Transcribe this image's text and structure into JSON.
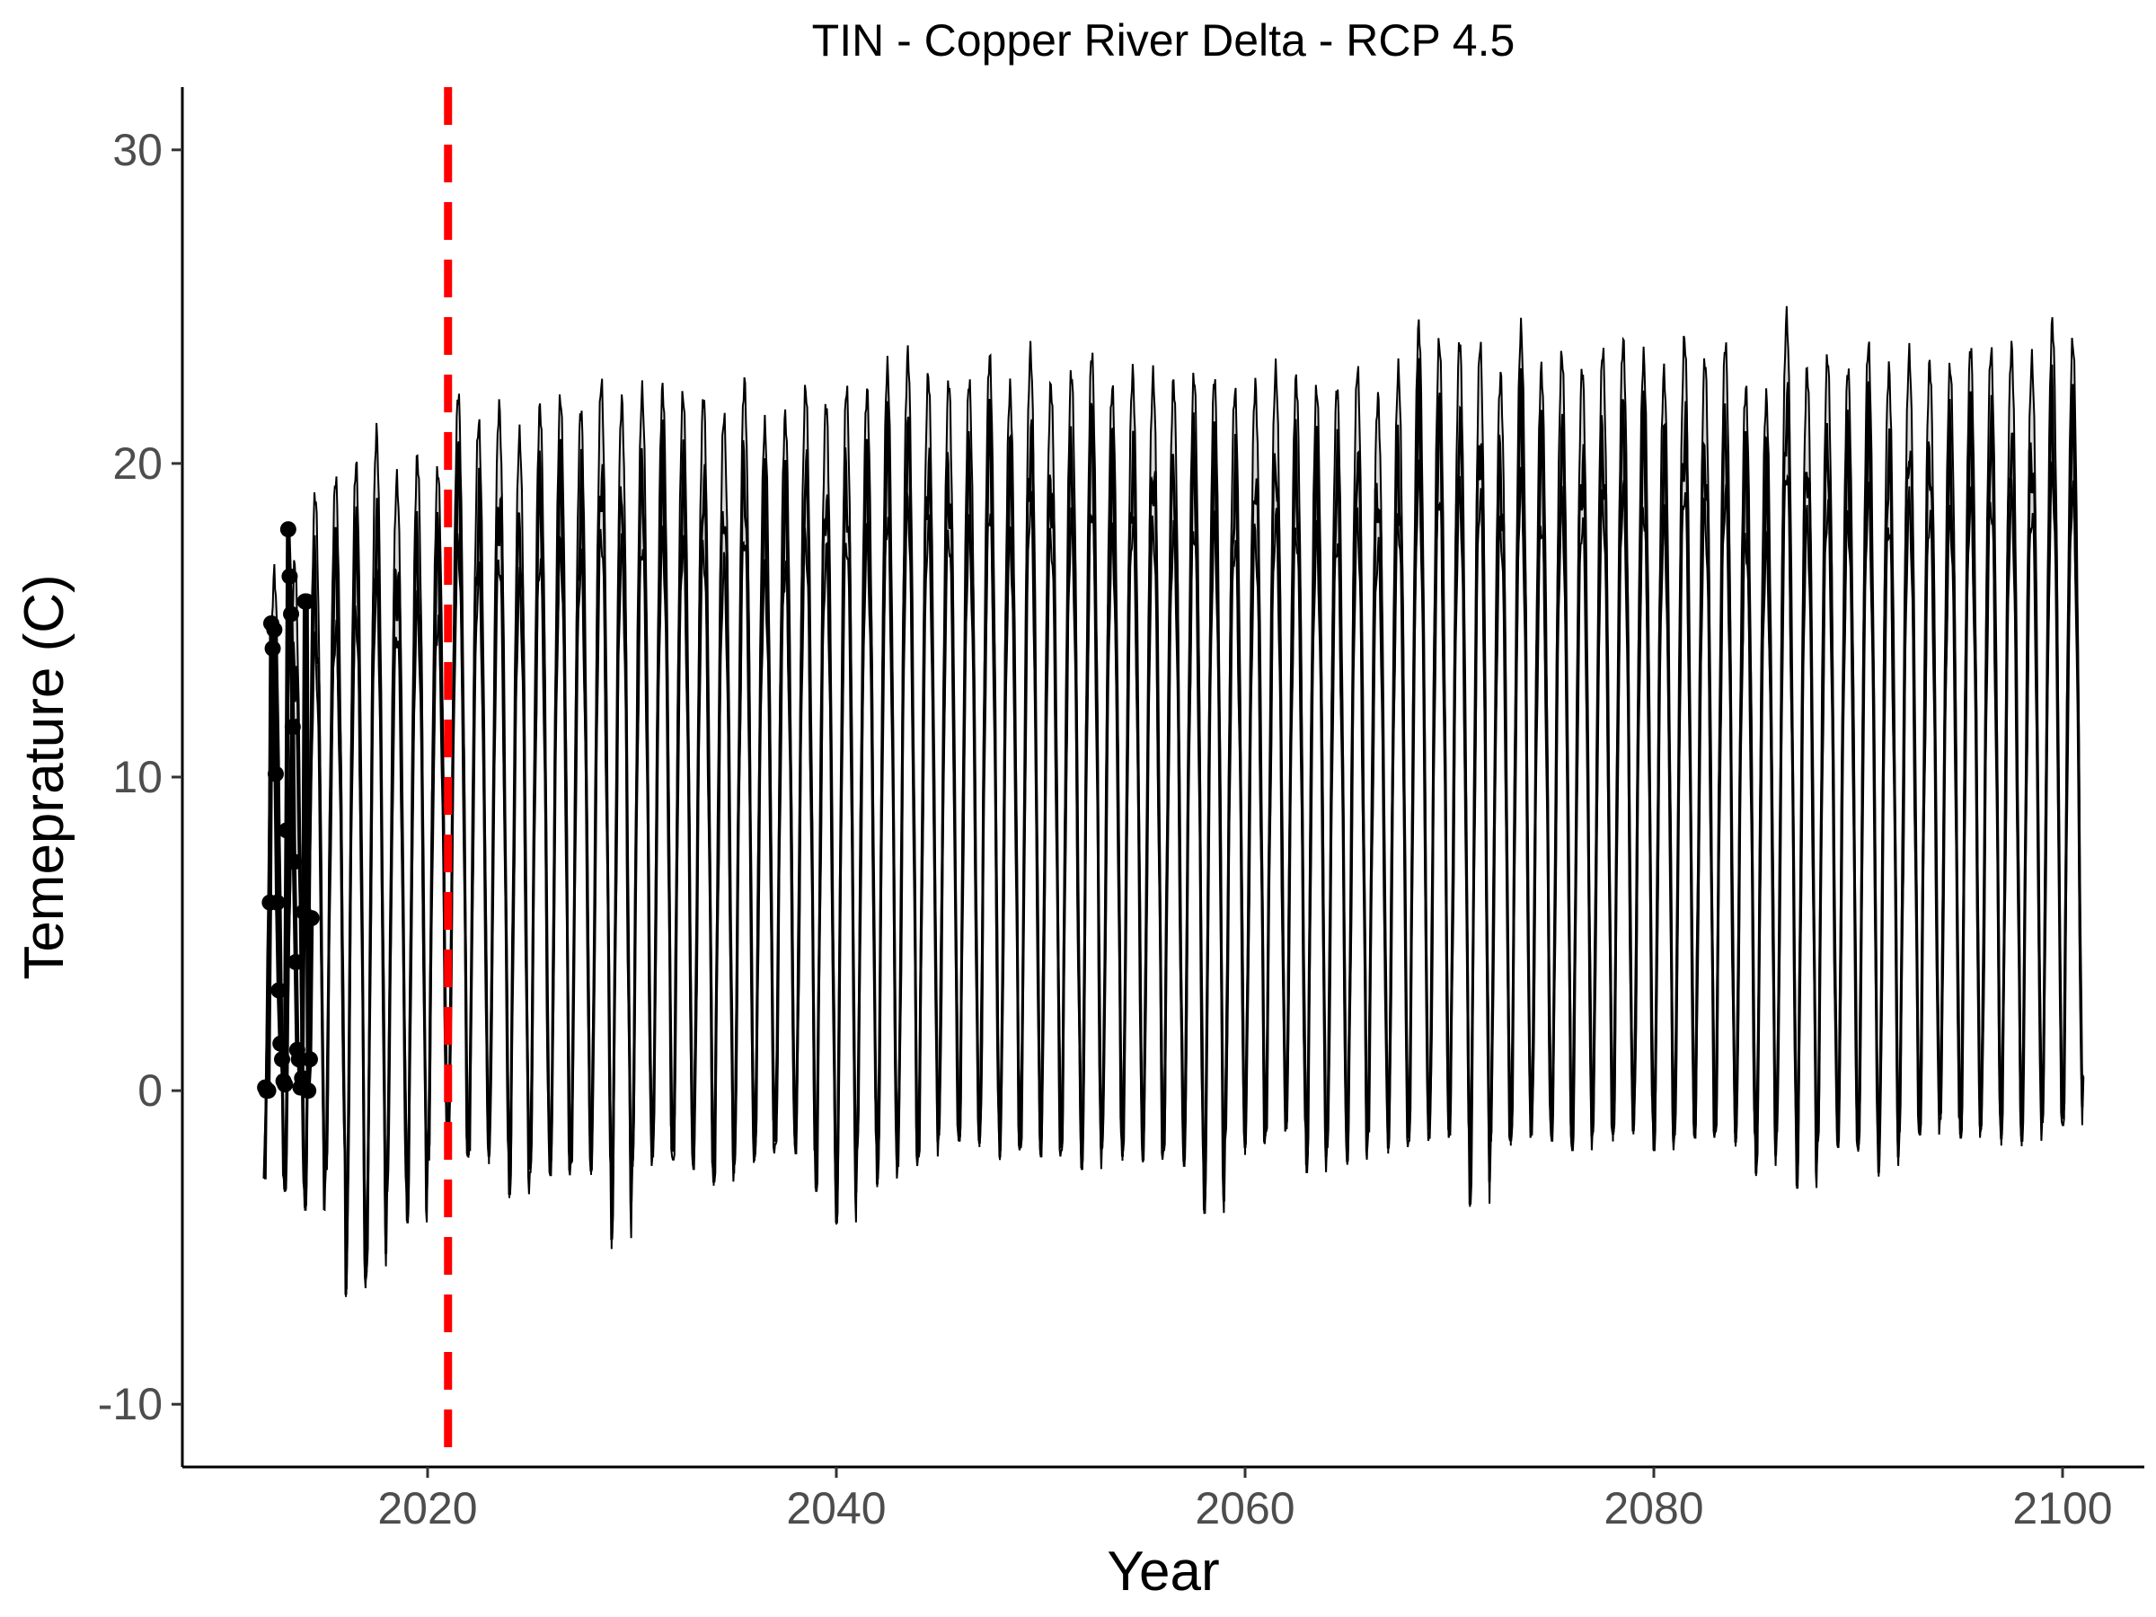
{
  "chart_data": {
    "type": "line",
    "title": "TIN - Copper River Delta - RCP 4.5",
    "xlabel": "Year",
    "ylabel": "Temeprature (C)",
    "xlim": [
      2008,
      2104
    ],
    "ylim": [
      -12,
      32
    ],
    "x_ticks": [
      2020,
      2040,
      2060,
      2080,
      2100
    ],
    "x_tick_labels": [
      "2020",
      "2040",
      "2060",
      "2080",
      "2100"
    ],
    "y_ticks": [
      -10,
      0,
      10,
      20,
      30
    ],
    "y_tick_labels": [
      "-10",
      "0",
      "10",
      "20",
      "30"
    ],
    "grid": false,
    "legend": "none",
    "start_year": 2012,
    "end_year": 2101,
    "vline": {
      "x": 2021,
      "color": "#ff0000",
      "style": "dashed"
    },
    "band_fill": "#d9d9d9",
    "line_color": "#000000",
    "summer_peak_upper": [
      16.5,
      16.8,
      19.0,
      19.5,
      20.0,
      21.0,
      19.5,
      20.2,
      19.8,
      22.2,
      21.3,
      21.8,
      20.9,
      21.8,
      22.1,
      21.7,
      22.6,
      22.0,
      22.3,
      22.4,
      22.2,
      22.1,
      21.5,
      22.6,
      21.2,
      21.5,
      22.4,
      21.9,
      22.4,
      22.3,
      23.1,
      23.5,
      22.8,
      22.6,
      22.6,
      23.4,
      22.4,
      23.6,
      22.5,
      22.9,
      23.5,
      22.4,
      22.9,
      22.8,
      22.6,
      22.8,
      22.7,
      22.3,
      22.5,
      23.0,
      22.7,
      22.4,
      22.4,
      23.0,
      22.1,
      23.0,
      24.4,
      23.9,
      23.9,
      23.8,
      22.8,
      24.3,
      23.0,
      23.5,
      23.0,
      23.6,
      23.9,
      23.4,
      22.9,
      24.0,
      23.3,
      23.8,
      22.4,
      22.1,
      24.7,
      23.0,
      23.4,
      23.0,
      23.8,
      23.0,
      23.5,
      23.2,
      23.1,
      23.7,
      23.6,
      23.7,
      23.3,
      24.5,
      23.9,
      23.2
    ],
    "winter_trough_lower": [
      -2.8,
      -3.2,
      -3.8,
      -2.5,
      -6.3,
      -5.6,
      -3.2,
      -4.2,
      -2.2,
      -2.1,
      -1.9,
      -2.0,
      -3.3,
      -2.6,
      -2.7,
      -2.3,
      -2.5,
      -4.7,
      -2.4,
      -2.1,
      -2.2,
      -2.5,
      -2.9,
      -2.3,
      -2.0,
      -1.7,
      -2.0,
      -3.2,
      -4.2,
      -1.8,
      -2.8,
      -2.4,
      -2.1,
      -1.4,
      -1.6,
      -1.5,
      -1.9,
      -1.8,
      -2.1,
      -1.9,
      -2.5,
      -1.6,
      -1.9,
      -2.2,
      -1.9,
      -2.4,
      -3.9,
      -1.5,
      -1.7,
      -1.3,
      -1.2,
      -2.6,
      -1.8,
      -2.2,
      -1.3,
      -1.8,
      -1.6,
      -1.5,
      -1.4,
      -3.6,
      -1.6,
      -1.5,
      -1.4,
      -1.6,
      -1.9,
      -1.3,
      -1.3,
      -1.1,
      -1.9,
      -1.4,
      -1.5,
      -1.3,
      -1.5,
      -2.4,
      -1.3,
      -3.1,
      -1.6,
      -1.8,
      -1.7,
      -2.4,
      -1.3,
      -1.4,
      -0.9,
      -1.5,
      -1.1,
      -1.4,
      -1.6,
      -1.0,
      -1.1,
      0.3
    ],
    "observed_points": {
      "x": [
        2012.05,
        2012.12,
        2012.2,
        2012.28,
        2012.35,
        2012.42,
        2012.5,
        2012.57,
        2012.64,
        2012.72,
        2012.8,
        2012.88,
        2012.95,
        2013.02,
        2013.1,
        2013.18,
        2013.25,
        2013.32,
        2013.4,
        2013.47,
        2013.55,
        2013.62,
        2013.7,
        2013.78,
        2013.86,
        2013.93,
        2014.0,
        2014.08,
        2014.16,
        2014.24,
        2014.32
      ],
      "y": [
        0.1,
        0.0,
        0.0,
        6.0,
        14.9,
        14.1,
        14.7,
        10.1,
        6.0,
        3.2,
        1.5,
        1.0,
        0.3,
        0.2,
        8.3,
        17.9,
        16.4,
        15.2,
        11.6,
        7.3,
        4.1,
        1.3,
        1.0,
        0.1,
        0.4,
        5.7,
        15.6,
        15.6,
        0.0,
        1.0,
        5.5
      ]
    }
  }
}
